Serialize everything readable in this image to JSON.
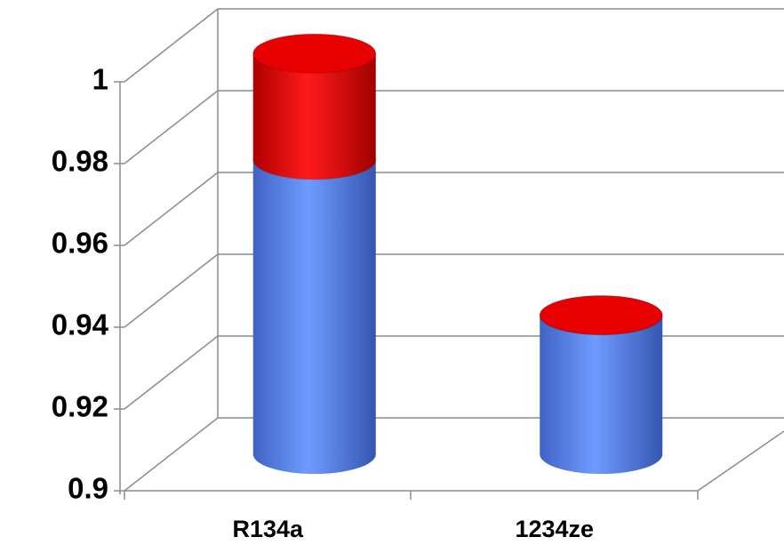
{
  "chart_data": {
    "type": "bar3d",
    "stacked": true,
    "categories": [
      "R134a",
      "1234ze"
    ],
    "series": [
      {
        "color": "#5b86ef",
        "values": [
          0.972,
          0.934
        ]
      },
      {
        "color": "#e80000",
        "values": [
          0.026,
          0
        ]
      }
    ],
    "ylim": [
      0.9,
      1
    ],
    "yticks": [
      0.9,
      0.92,
      0.94,
      0.96,
      0.98,
      1
    ],
    "grid": true
  }
}
